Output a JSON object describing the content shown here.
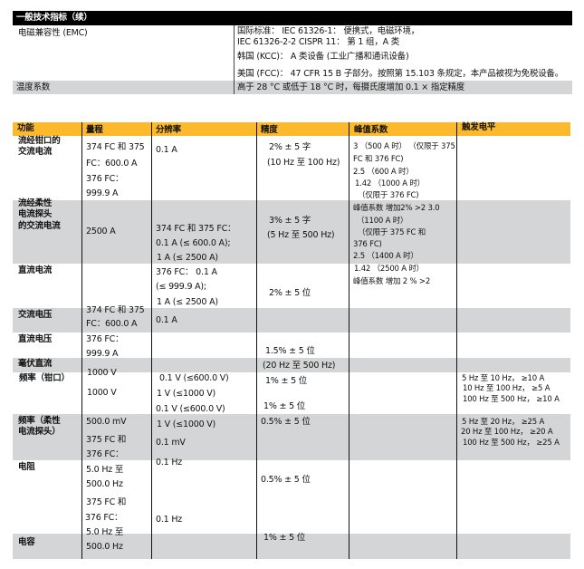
{
  "general": {
    "title": "一般技术指标（续）",
    "emc_label": "电磁兼容性 (EMC)",
    "emc_lines": [
      "国际标准： IEC 61326-1： 便携式，电磁环境，",
      "IEC 61326-2-2 CISPR 11： 第 1 组，A 类",
      "韩国 (KCC)： A 类设备 (工业广播和通讯设备)",
      "美国 (FCC)： 47 CFR 15 B 子部分。按照第 15.103 条规定，本产品被视为免税设备。"
    ],
    "temp_label": "温度系数",
    "temp_value": "高于 28 °C 或低于 18 °C 时，每摄氏度增加 0.1 × 指定精度"
  },
  "colors": {
    "header_black": "#000000",
    "header_orange": "#fdb92c",
    "row_gray": "#d4d5d6"
  },
  "table": {
    "headers": [
      "功能",
      "量程",
      "分辨率",
      "精度",
      "峰值系数",
      "触发电平"
    ],
    "functions": [
      "流经钳口的",
      "交流电流",
      "流经柔性",
      "电流探头",
      "的交流电流",
      "直流电流",
      "交流电压",
      "直流电压",
      "毫伏直流",
      "频率（钳口）",
      "频率（柔性",
      "电流探头）",
      "电阻",
      "电容"
    ],
    "range": [
      "374 FC 和 375",
      "FC：600.0 A",
      "376 FC：",
      "999.9 A",
      "2500 A",
      "374 FC 和 375",
      "FC：600.0 A",
      "376 FC：",
      "999.9 A",
      "1000 V",
      "1000 V",
      "500.0 mV",
      "375 FC 和",
      "376 FC：",
      "5.0 Hz 至",
      "500.0 Hz",
      "375 FC 和",
      "376 FC：",
      "5.0 Hz 至",
      "500.0 Hz"
    ],
    "resolution": [
      "0.1 A",
      "374 FC 和 375 FC：",
      "0.1 A (≤ 600.0 A);",
      "1 A (≤ 2500 A)",
      "376 FC： 0.1 A",
      "(≤ 999.9 A);",
      "1 A (≤ 2500 A)",
      "0.1 A",
      "0.1 V (≤600.0 V)",
      "1 V (≤1000 V)",
      "0.1 V (≤600.0 V)",
      "1 V (≤1000 V)",
      "0.1 mV",
      "0.1 Hz",
      "0.1 Hz"
    ],
    "accuracy": [
      "2% ± 5 字",
      "(10 Hz 至 100 Hz)",
      "3% ± 5 字",
      "(5 Hz 至 500 Hz)",
      "2% ± 5 位",
      "1.5% ± 5 位",
      "(20 Hz 至 500 Hz)",
      "1% ± 5 位",
      "1% ± 5 位",
      "0.5% ± 5 位",
      "0.5% ± 5 位",
      "1% ± 5 位"
    ],
    "crest": [
      "3 （500 A 时） （仅限于 375",
      "FC 和 376 FC)",
      "2.5 （600 A 时）",
      "1.42 （1000 A 时）",
      "（仅限于 376 FC)",
      "峰值系数 增加2% >2 3.0",
      "（1100 A 时）",
      "（仅限于 375 FC 和",
      "376 FC)",
      "2.5 （1400 A 时）",
      "1.42 （2500 A 时）",
      "峰值系数 增加 2 % >2"
    ],
    "trigger": [
      "5 Hz 至 10 Hz， ≥10 A",
      "10 Hz 至 100 Hz， ≥5 A",
      "100 Hz 至 500 Hz， ≥10 A",
      "5 Hz 至 20 Hz， ≥25 A",
      "20 Hz 至 100 Hz， ≥20 A",
      "100 Hz 至 500 Hz， ≥25 A"
    ]
  }
}
